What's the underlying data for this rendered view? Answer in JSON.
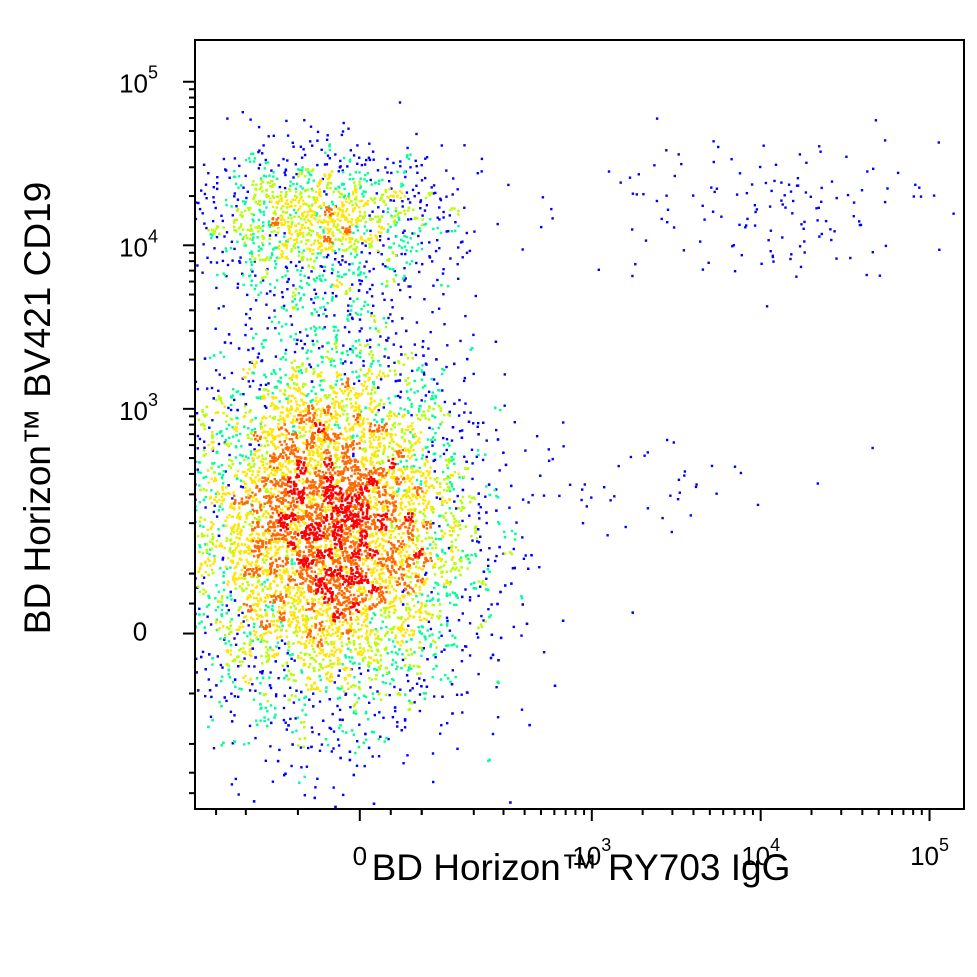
{
  "chart_data": {
    "type": "scatter",
    "style": "pseudocolor density dot plot",
    "xlabel": "BD Horizon™ RY703 IgG",
    "ylabel": "BD Horizon™ BV421 CD19",
    "x_scale": "biexponential",
    "y_scale": "biexponential",
    "xlim": [
      -400,
      160000
    ],
    "ylim": [
      -500,
      180000
    ],
    "x_ticks": [
      {
        "value": 0,
        "base": "0",
        "exp": ""
      },
      {
        "value": 1000,
        "base": "10",
        "exp": "3"
      },
      {
        "value": 10000,
        "base": "10",
        "exp": "4"
      },
      {
        "value": 100000,
        "base": "10",
        "exp": "5"
      }
    ],
    "y_ticks": [
      {
        "value": 0,
        "base": "0",
        "exp": ""
      },
      {
        "value": 1000,
        "base": "10",
        "exp": "3"
      },
      {
        "value": 10000,
        "base": "10",
        "exp": "4"
      },
      {
        "value": 100000,
        "base": "10",
        "exp": "5"
      }
    ],
    "density_colors": [
      "#0000ff",
      "#00c8ff",
      "#00ff9a",
      "#b4ff00",
      "#ffe600",
      "#ff6a00",
      "#ff0000"
    ],
    "grid": false,
    "legend": "none",
    "populations": [
      {
        "x_center": -50,
        "y_center": 180,
        "count": 9000
      },
      {
        "x_center": -60,
        "y_center": 14000,
        "count": 1400
      },
      {
        "x_center": -40,
        "y_center": 2200,
        "count": 140
      },
      {
        "x_center": 10000,
        "y_center": 18000,
        "count": 150
      },
      {
        "x_center": 1500,
        "y_center": 350,
        "count": 45
      }
    ]
  }
}
